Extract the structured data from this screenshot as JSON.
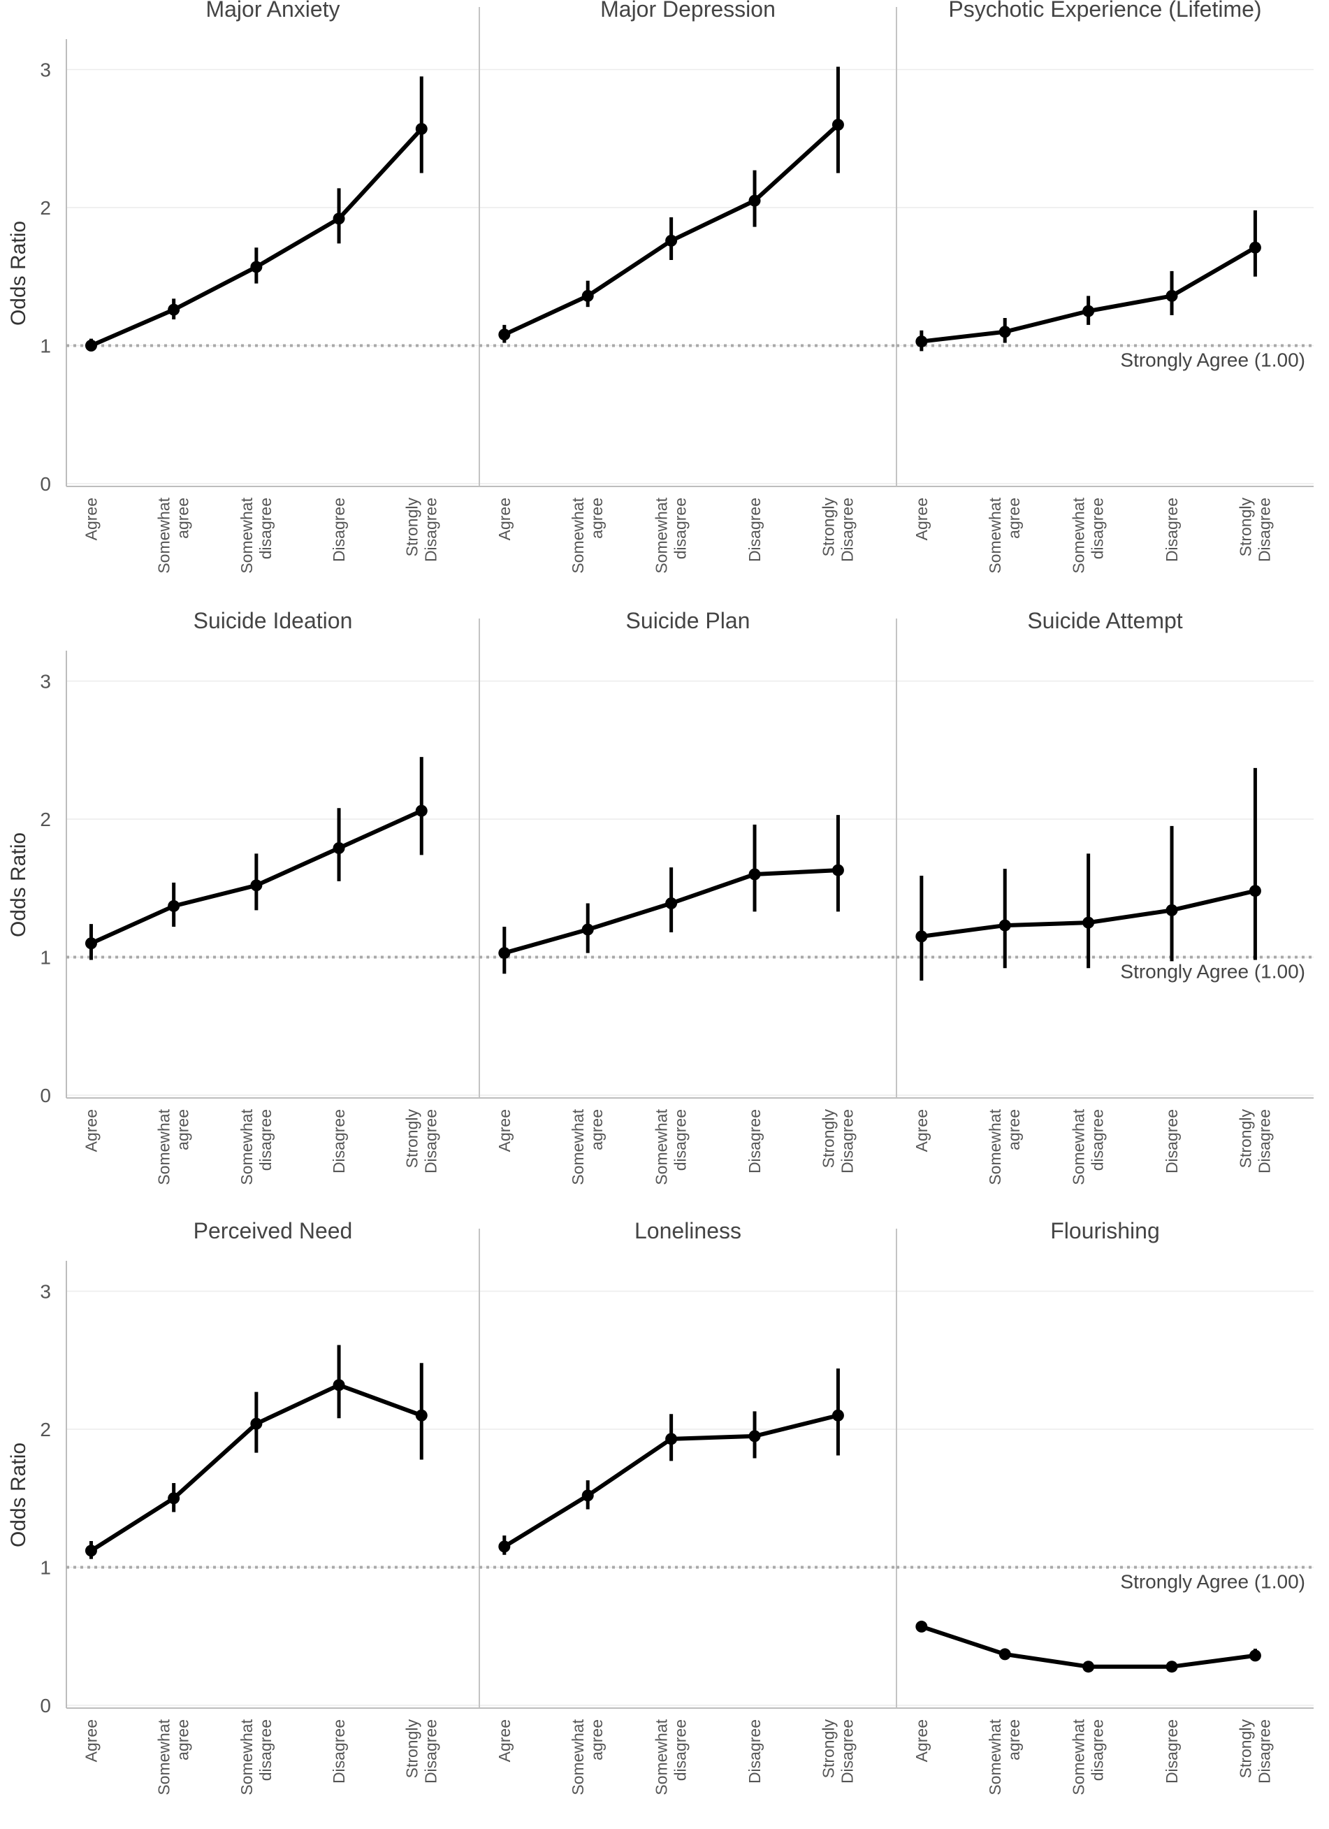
{
  "chart_data": {
    "type": "line",
    "ylabel": "Odds Ratio",
    "ylim": [
      0,
      3.2
    ],
    "yticks": [
      0,
      1,
      2,
      3
    ],
    "categories": [
      "Agree",
      "Somewhat agree",
      "Somewhat disagree",
      "Disagree",
      "Strongly Disagree"
    ],
    "category_lines": [
      [
        "Agree"
      ],
      [
        "Somewhat",
        "agree"
      ],
      [
        "Somewhat",
        "disagree"
      ],
      [
        "Disagree"
      ],
      [
        "Strongly",
        "Disagree"
      ]
    ],
    "reference": {
      "value": 1.0,
      "label": "Strongly Agree (1.00)"
    },
    "panels": [
      {
        "title": "Major Anxiety",
        "values": [
          1.0,
          1.26,
          1.57,
          1.92,
          2.57
        ],
        "lower": [
          0.96,
          1.19,
          1.45,
          1.74,
          2.25
        ],
        "upper": [
          1.05,
          1.34,
          1.71,
          2.14,
          2.95
        ]
      },
      {
        "title": "Major Depression",
        "values": [
          1.08,
          1.36,
          1.76,
          2.05,
          2.6
        ],
        "lower": [
          1.02,
          1.28,
          1.62,
          1.86,
          2.25
        ],
        "upper": [
          1.15,
          1.47,
          1.93,
          2.27,
          3.02
        ]
      },
      {
        "title": "Psychotic Experience (Lifetime)",
        "values": [
          1.03,
          1.1,
          1.25,
          1.36,
          1.71
        ],
        "lower": [
          0.96,
          1.02,
          1.15,
          1.22,
          1.5
        ],
        "upper": [
          1.11,
          1.2,
          1.36,
          1.54,
          1.98
        ]
      },
      {
        "title": "Suicide Ideation",
        "values": [
          1.1,
          1.37,
          1.52,
          1.79,
          2.06
        ],
        "lower": [
          0.98,
          1.22,
          1.34,
          1.55,
          1.74
        ],
        "upper": [
          1.24,
          1.54,
          1.75,
          2.08,
          2.45
        ]
      },
      {
        "title": "Suicide Plan",
        "values": [
          1.03,
          1.2,
          1.39,
          1.6,
          1.63
        ],
        "lower": [
          0.88,
          1.03,
          1.18,
          1.33,
          1.33
        ],
        "upper": [
          1.22,
          1.39,
          1.65,
          1.96,
          2.03
        ]
      },
      {
        "title": "Suicide Attempt",
        "values": [
          1.15,
          1.23,
          1.25,
          1.34,
          1.48
        ],
        "lower": [
          0.83,
          0.92,
          0.92,
          0.97,
          0.98
        ],
        "upper": [
          1.59,
          1.64,
          1.75,
          1.95,
          2.37
        ]
      },
      {
        "title": "Perceived Need",
        "values": [
          1.12,
          1.5,
          2.04,
          2.32,
          2.1
        ],
        "lower": [
          1.06,
          1.4,
          1.83,
          2.08,
          1.78
        ],
        "upper": [
          1.19,
          1.61,
          2.27,
          2.61,
          2.48
        ]
      },
      {
        "title": "Loneliness",
        "values": [
          1.15,
          1.52,
          1.93,
          1.95,
          2.1
        ],
        "lower": [
          1.09,
          1.42,
          1.77,
          1.79,
          1.81
        ],
        "upper": [
          1.23,
          1.63,
          2.11,
          2.13,
          2.44
        ]
      },
      {
        "title": "Flourishing",
        "values": [
          0.57,
          0.37,
          0.28,
          0.28,
          0.36
        ],
        "lower": [
          0.54,
          0.35,
          0.26,
          0.26,
          0.33
        ],
        "upper": [
          0.6,
          0.4,
          0.3,
          0.3,
          0.41
        ]
      }
    ]
  }
}
